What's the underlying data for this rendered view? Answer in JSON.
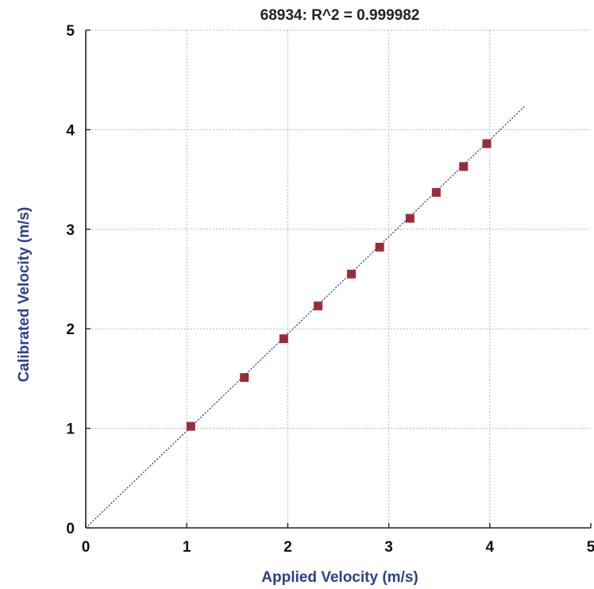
{
  "chart_data": {
    "type": "scatter",
    "title": "68934: R^2 = 0.999982",
    "xlabel": "Applied Velocity (m/s)",
    "ylabel": "Calibrated Velocity (m/s)",
    "xlim": [
      0,
      5
    ],
    "ylim": [
      0,
      5
    ],
    "x_ticks": [
      "0",
      "1",
      "2",
      "3",
      "4",
      "5"
    ],
    "y_ticks": [
      "0",
      "1",
      "2",
      "3",
      "4",
      "5"
    ],
    "grid": true,
    "series": [
      {
        "x": [
          1.04,
          1.57,
          1.96,
          2.3,
          2.63,
          2.91,
          3.21,
          3.47,
          3.74,
          3.97
        ],
        "y": [
          1.02,
          1.51,
          1.9,
          2.23,
          2.55,
          2.82,
          3.11,
          3.37,
          3.63,
          3.86
        ],
        "color": "#9c2b3a",
        "marker": "square"
      }
    ],
    "fit_line": {
      "x": [
        0,
        4.35
      ],
      "y": [
        0,
        4.24
      ],
      "color": "#2a3a9a",
      "style": "dotted"
    }
  }
}
